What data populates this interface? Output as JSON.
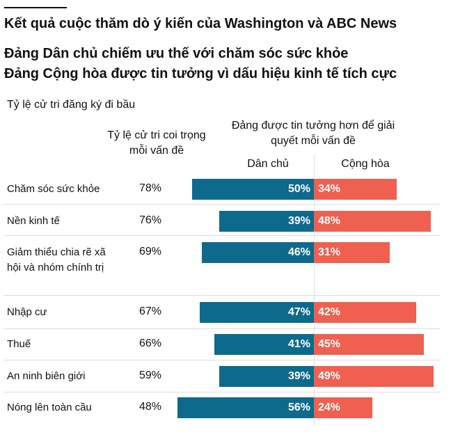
{
  "header": {
    "title": "Kết quả cuộc thăm dò ý kiến của Washington và ABC News",
    "subtitle_1": "Đảng Dân chủ chiếm ưu thế với chăm sóc sức khỏe",
    "subtitle_2": "Đảng Cộng hòa được tin tưởng vì dấu hiệu kinh tế tích cực",
    "note": "Tỷ lệ cử tri đăng ký đi bầu"
  },
  "chart_data": {
    "type": "bar",
    "subtype": "diverging-horizontal",
    "column_header_importance": "Tỷ lệ cử tri coi trọng mỗi vấn đề",
    "column_header_trust": "Đảng được tin tưởng hơn để giải quyết mỗi vấn đề",
    "categories": [
      "Chăm sóc sức khỏe",
      "Nền kinh tế",
      "Giảm thiểu chia rẽ xã hội và nhóm chính trị",
      "Nhập cư",
      "Thuế",
      "An ninh biên giới",
      "Nóng lên toàn cầu"
    ],
    "importance": [
      78,
      76,
      69,
      67,
      66,
      59,
      48
    ],
    "series": [
      {
        "name": "Dân chủ",
        "values": [
          50,
          39,
          46,
          47,
          41,
          39,
          56
        ],
        "color": "#0e6a8c"
      },
      {
        "name": "Cộng hòa",
        "values": [
          34,
          48,
          31,
          42,
          45,
          49,
          24
        ],
        "color": "#f06051"
      }
    ],
    "unit": "%"
  }
}
